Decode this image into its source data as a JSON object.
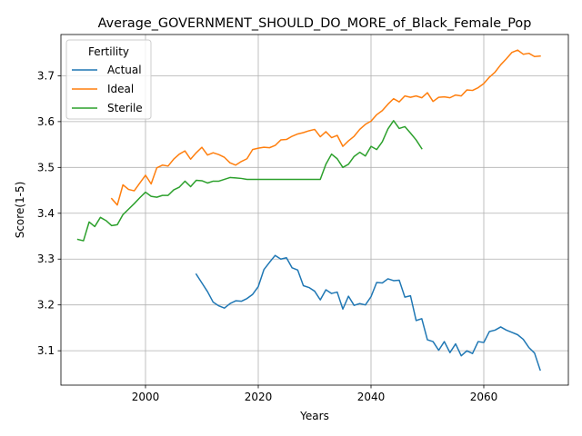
{
  "chart_data": {
    "type": "line",
    "title": "Average_GOVERNMENT_SHOULD_DO_MORE_of_Black_Female_Pop",
    "xlabel": "Years",
    "ylabel": "Score(1-5)",
    "xlim": [
      1985,
      2075
    ],
    "ylim": [
      3.025,
      3.79
    ],
    "xticks": [
      2000,
      2020,
      2040,
      2060
    ],
    "yticks": [
      3.1,
      3.2,
      3.3,
      3.4,
      3.5,
      3.6,
      3.7
    ],
    "grid": true,
    "legend": {
      "title": "Fertility",
      "placement": "top-left"
    },
    "series": [
      {
        "name": "Actual",
        "color": "#1f77b4",
        "x": [
          2009,
          2010,
          2011,
          2012,
          2013,
          2014,
          2015,
          2016,
          2017,
          2018,
          2019,
          2020,
          2021,
          2022,
          2023,
          2024,
          2025,
          2026,
          2027,
          2028,
          2029,
          2030,
          2031,
          2032,
          2033,
          2034,
          2035,
          2036,
          2037,
          2038,
          2039,
          2040,
          2041,
          2042,
          2043,
          2044,
          2045,
          2046,
          2047,
          2048,
          2049,
          2050,
          2051,
          2052,
          2053,
          2054,
          2055,
          2056,
          2057,
          2058,
          2059,
          2060,
          2061,
          2062,
          2063,
          2064,
          2065,
          2066,
          2067,
          2068,
          2069,
          2070
        ],
        "y": [
          3.267,
          3.248,
          3.229,
          3.206,
          3.198,
          3.193,
          3.203,
          3.209,
          3.208,
          3.214,
          3.223,
          3.24,
          3.277,
          3.293,
          3.308,
          3.3,
          3.303,
          3.281,
          3.276,
          3.242,
          3.238,
          3.23,
          3.211,
          3.233,
          3.225,
          3.228,
          3.191,
          3.219,
          3.199,
          3.203,
          3.2,
          3.218,
          3.249,
          3.248,
          3.257,
          3.253,
          3.254,
          3.217,
          3.22,
          3.166,
          3.17,
          3.124,
          3.12,
          3.101,
          3.12,
          3.096,
          3.115,
          3.089,
          3.1,
          3.094,
          3.12,
          3.118,
          3.142,
          3.145,
          3.152,
          3.145,
          3.14,
          3.135,
          3.125,
          3.107,
          3.095,
          3.058
        ]
      },
      {
        "name": "Ideal",
        "color": "#ff7f0e",
        "x": [
          1994,
          1995,
          1996,
          1997,
          1998,
          1999,
          2000,
          2001,
          2002,
          2003,
          2004,
          2005,
          2006,
          2007,
          2008,
          2009,
          2010,
          2011,
          2012,
          2013,
          2014,
          2015,
          2016,
          2017,
          2018,
          2019,
          2020,
          2021,
          2022,
          2023,
          2024,
          2025,
          2026,
          2027,
          2028,
          2029,
          2030,
          2031,
          2032,
          2033,
          2034,
          2035,
          2036,
          2037,
          2038,
          2039,
          2040,
          2041,
          2042,
          2043,
          2044,
          2045,
          2046,
          2047,
          2048,
          2049,
          2050,
          2051,
          2052,
          2053,
          2054,
          2055,
          2056,
          2057,
          2058,
          2059,
          2060,
          2061,
          2062,
          2063,
          2064,
          2065,
          2066,
          2067,
          2068,
          2069,
          2070
        ],
        "y": [
          3.432,
          3.418,
          3.462,
          3.452,
          3.449,
          3.466,
          3.483,
          3.464,
          3.499,
          3.505,
          3.503,
          3.518,
          3.529,
          3.536,
          3.518,
          3.532,
          3.544,
          3.527,
          3.532,
          3.528,
          3.522,
          3.51,
          3.505,
          3.513,
          3.519,
          3.539,
          3.542,
          3.544,
          3.543,
          3.548,
          3.56,
          3.561,
          3.568,
          3.573,
          3.576,
          3.58,
          3.583,
          3.567,
          3.578,
          3.565,
          3.57,
          3.546,
          3.558,
          3.568,
          3.583,
          3.594,
          3.601,
          3.615,
          3.624,
          3.638,
          3.65,
          3.643,
          3.656,
          3.653,
          3.656,
          3.652,
          3.663,
          3.644,
          3.653,
          3.654,
          3.652,
          3.658,
          3.656,
          3.669,
          3.668,
          3.674,
          3.683,
          3.697,
          3.708,
          3.724,
          3.737,
          3.751,
          3.756,
          3.747,
          3.749,
          3.742,
          3.743
        ]
      },
      {
        "name": "Sterile",
        "color": "#2ca02c",
        "x": [
          1988,
          1989,
          1990,
          1991,
          1992,
          1993,
          1994,
          1995,
          1996,
          1997,
          1998,
          1999,
          2000,
          2001,
          2002,
          2003,
          2004,
          2005,
          2006,
          2007,
          2008,
          2009,
          2010,
          2011,
          2012,
          2013,
          2014,
          2015,
          2016,
          2017,
          2018,
          2019,
          2020,
          2021,
          2022,
          2023,
          2024,
          2025,
          2026,
          2027,
          2028,
          2029,
          2030,
          2031,
          2032,
          2033,
          2034,
          2035,
          2036,
          2037,
          2038,
          2039,
          2040,
          2041,
          2042,
          2043,
          2044,
          2045,
          2046,
          2047,
          2048,
          2049
        ],
        "y": [
          3.343,
          3.34,
          3.381,
          3.371,
          3.391,
          3.384,
          3.373,
          3.375,
          3.397,
          3.409,
          3.421,
          3.434,
          3.446,
          3.437,
          3.435,
          3.439,
          3.439,
          3.451,
          3.457,
          3.47,
          3.458,
          3.472,
          3.471,
          3.466,
          3.47,
          3.47,
          3.474,
          3.478,
          3.477,
          3.476,
          3.474,
          3.474,
          3.474,
          3.474,
          3.474,
          3.474,
          3.474,
          3.474,
          3.474,
          3.474,
          3.474,
          3.474,
          3.474,
          3.474,
          3.507,
          3.529,
          3.519,
          3.5,
          3.507,
          3.524,
          3.533,
          3.525,
          3.546,
          3.539,
          3.556,
          3.584,
          3.602,
          3.585,
          3.589,
          3.575,
          3.56,
          3.541
        ]
      }
    ]
  }
}
